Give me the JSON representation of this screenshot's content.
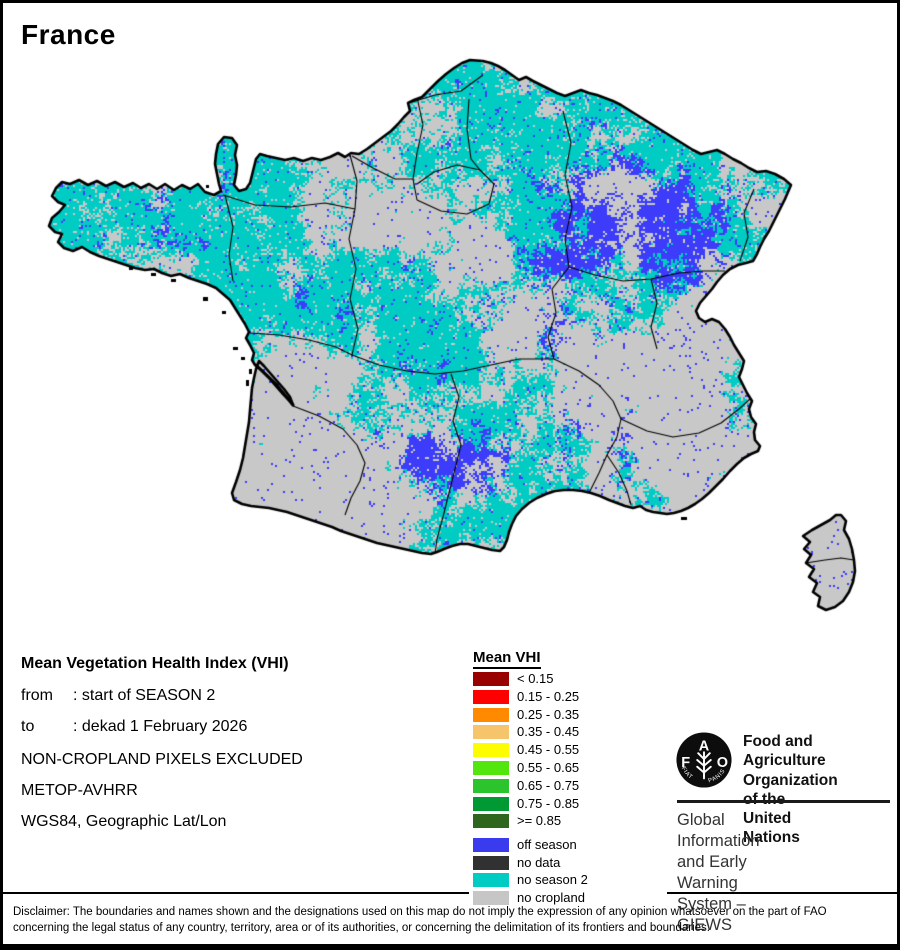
{
  "title": "France",
  "info": {
    "heading": "Mean Vegetation Health Index (VHI)",
    "rows": [
      {
        "label": "from",
        "value": ": start of SEASON 2"
      },
      {
        "label": "to",
        "value": ": dekad 1 February 2026"
      }
    ],
    "lines": [
      "NON-CROPLAND PIXELS EXCLUDED",
      "METOP-AVHRR",
      "WGS84, Geographic Lat/Lon"
    ]
  },
  "legend": {
    "title": "Mean VHI",
    "items": [
      {
        "range": "< 0.15",
        "color": "#990000"
      },
      {
        "range": "0.15 - 0.25",
        "color": "#FE0000"
      },
      {
        "range": "0.25 - 0.35",
        "color": "#FF8A00"
      },
      {
        "range": "0.35 - 0.45",
        "color": "#F6C46A"
      },
      {
        "range": "0.45 - 0.55",
        "color": "#FDFD00"
      },
      {
        "range": "0.55 - 0.65",
        "color": "#53E60E"
      },
      {
        "range": "0.65 - 0.75",
        "color": "#2CC42C"
      },
      {
        "range": "0.75 - 0.85",
        "color": "#019934"
      },
      {
        "range": ">= 0.85",
        "color": "#2E661E"
      }
    ],
    "status_items": [
      {
        "label": "off season",
        "color": "#3A3AEF"
      },
      {
        "label": "no data",
        "color": "#313131"
      },
      {
        "label": "no season 2",
        "color": "#00CCC4"
      },
      {
        "label": "no cropland",
        "color": "#C6C6C6"
      }
    ]
  },
  "map": {
    "region": "France",
    "colors": {
      "sea": "#FFFFFF",
      "outline": "#000000",
      "no_season2": "#00CCC4",
      "no_cropland": "#C8C8C8",
      "off_season": "#3C3CFA"
    }
  },
  "fao": {
    "logo": {
      "letters": "FAO",
      "motto_left": "FIAT",
      "motto_right": "PANIS"
    },
    "org_lines": [
      "Food and Agriculture",
      "Organization of the",
      "United Nations"
    ],
    "giews_lines": [
      "Global Information and Early",
      "Warning System – GIEWS"
    ]
  },
  "disclaimer": {
    "line1": "Disclaimer: The boundaries and names shown and the designations used on this map do not imply the expression of any opinion whatsoever on the part of FAO",
    "line2": "concerning the legal status of any country, territory, area or of its authorities, or concerning the delimitation of its frontiers and boundaries."
  }
}
